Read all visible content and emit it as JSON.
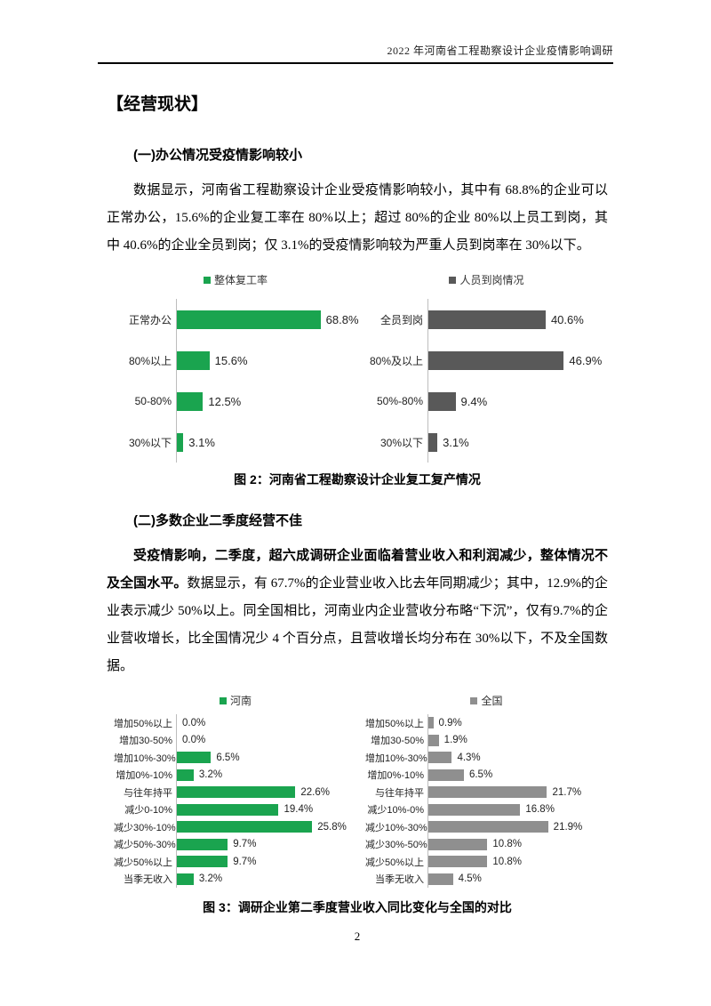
{
  "header": {
    "title": "2022 年河南省工程勘察设计企业疫情影响调研"
  },
  "body": {
    "main_heading": "【经营现状】",
    "sub1_heading": "(一)办公情况受疫情影响较小",
    "para1": "数据显示，河南省工程勘察设计企业受疫情影响较小，其中有 68.8%的企业可以正常办公，15.6%的企业复工率在 80%以上；超过 80%的企业 80%以上员工到岗，其中 40.6%的企业全员到岗；仅 3.1%的受疫情影响较为严重人员到岗率在 30%以下。",
    "sub2_heading": "(二)多数企业二季度经营不佳",
    "para2_bold": "受疫情影响，二季度，超六成调研企业面临着营业收入和利润减少，整体情况不及全国水平。",
    "para2_rest": "数据显示，有 67.7%的企业营业收入比去年同期减少；其中，12.9%的企业表示减少 50%以上。同全国相比，河南业内企业营收分布略“下沉”，仅有9.7%的企业营收增长，比全国情况少 4 个百分点，且营收增长均分布在 30%以下，不及全国数据。"
  },
  "colors": {
    "green": "#1AA44F",
    "dark_gray": "#595959",
    "light_gray": "#8F8F8F"
  },
  "chart_data": [
    {
      "type": "bar",
      "orientation": "horizontal",
      "title": "图 2：河南省工程勘察设计企业复工复产情况",
      "grid": false,
      "value_labels": true,
      "charts": [
        {
          "legend": "整体复工率",
          "legend_position": "top-center",
          "color": "#1AA44F",
          "categories": [
            "正常办公",
            "80%以上",
            "50-80%",
            "30%以下"
          ],
          "values": [
            68.8,
            15.6,
            12.5,
            3.1
          ]
        },
        {
          "legend": "人员到岗情况",
          "legend_position": "top-center",
          "color": "#595959",
          "categories": [
            "全员到岗",
            "80%及以上",
            "50%-80%",
            "30%以下"
          ],
          "values": [
            40.6,
            46.9,
            9.4,
            3.1
          ]
        }
      ]
    },
    {
      "type": "bar",
      "orientation": "horizontal",
      "title": "图 3：调研企业第二季度营业收入同比变化与全国的对比",
      "grid": false,
      "value_labels": true,
      "charts": [
        {
          "legend": "河南",
          "legend_position": "top-center",
          "color": "#1AA44F",
          "categories": [
            "增加50%以上",
            "增加30-50%",
            "增加10%-30%",
            "增加0%-10%",
            "与往年持平",
            "减少0-10%",
            "减少30%-10%",
            "减少50%-30%",
            "减少50%以上",
            "当季无收入"
          ],
          "values": [
            0.0,
            0.0,
            6.5,
            3.2,
            22.6,
            19.4,
            25.8,
            9.7,
            9.7,
            3.2
          ]
        },
        {
          "legend": "全国",
          "legend_position": "top-center",
          "color": "#8F8F8F",
          "categories": [
            "增加50%以上",
            "增加30-50%",
            "增加10%-30%",
            "增加0%-10%",
            "与往年持平",
            "减少10%-0%",
            "减少10%-30%",
            "减少30%-50%",
            "减少50%以上",
            "当季无收入"
          ],
          "values": [
            0.9,
            1.9,
            4.3,
            6.5,
            21.7,
            16.8,
            21.9,
            10.8,
            10.8,
            4.5
          ]
        }
      ]
    }
  ],
  "page_number": "2"
}
